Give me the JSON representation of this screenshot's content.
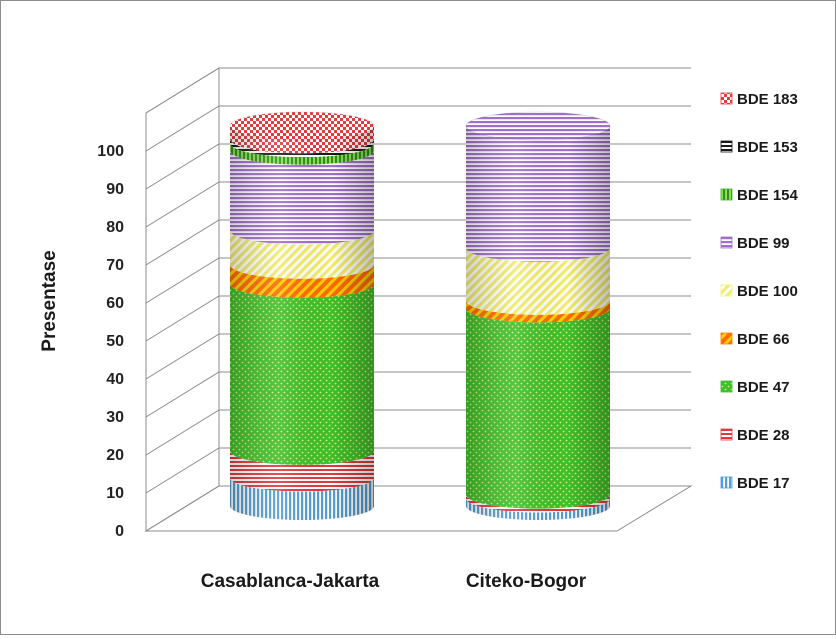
{
  "chart_data": {
    "type": "bar",
    "style": "3d-stacked-cylinder",
    "categories": [
      "Casablanca-Jakarta",
      "Citeko-Bogor"
    ],
    "ylabel": "Presentase",
    "xlabel": "",
    "ylim": [
      0,
      100
    ],
    "yticks": [
      "0",
      "10",
      "20",
      "30",
      "40",
      "50",
      "60",
      "70",
      "80",
      "90",
      "100"
    ],
    "grid": true,
    "legend_position": "right",
    "series": [
      {
        "name": "BDE 17",
        "color": "#4f9fd8",
        "pattern": "vertical",
        "values": [
          7.5,
          2
        ]
      },
      {
        "name": "BDE 28",
        "color": "#e03a3a",
        "pattern": "horizontal",
        "values": [
          7,
          1
        ]
      },
      {
        "name": "BDE 47",
        "color": "#3fbf2a",
        "pattern": "dots",
        "values": [
          44,
          49
        ]
      },
      {
        "name": "BDE 66",
        "color": "#ff7a00",
        "pattern": "diagonal",
        "values": [
          5,
          2
        ]
      },
      {
        "name": "BDE 100",
        "color": "#f4f07a",
        "pattern": "diagonal",
        "values": [
          9,
          14
        ]
      },
      {
        "name": "BDE 99",
        "color": "#a070c8",
        "pattern": "horizontal",
        "values": [
          21,
          32
        ]
      },
      {
        "name": "BDE 154",
        "color": "#46b832",
        "pattern": "vertical",
        "values": [
          2,
          0
        ]
      },
      {
        "name": "BDE 153",
        "color": "#1a1a1a",
        "pattern": "horizontal",
        "values": [
          1,
          0
        ]
      },
      {
        "name": "BDE 183",
        "color": "#e23b3b",
        "pattern": "checker",
        "values": [
          3.5,
          0
        ]
      }
    ]
  }
}
